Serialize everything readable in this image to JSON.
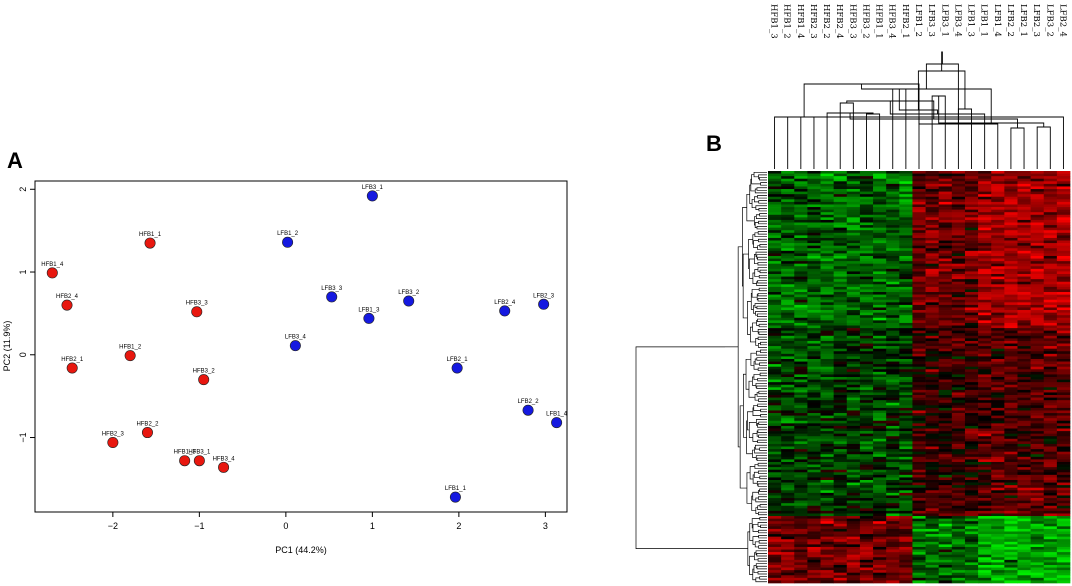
{
  "figure": {
    "panel_a_letter": "A",
    "panel_b_letter": "B"
  },
  "chart_data": [
    {
      "type": "scatter",
      "panel": "A",
      "xlabel": "PC1 (44.2%)",
      "ylabel": "PC2 (11.9%)",
      "xlim": [
        -2.9,
        3.25
      ],
      "ylim": [
        -1.9,
        2.1
      ],
      "xticks": [
        -2,
        -1,
        0,
        1,
        2,
        3
      ],
      "yticks": [
        -1,
        0,
        1,
        2
      ],
      "xtick_labels": [
        "−2",
        "−1",
        "0",
        "1",
        "2",
        "3"
      ],
      "ytick_labels": [
        "−1",
        "0",
        "1",
        "2"
      ],
      "grid": false,
      "colors": {
        "HFB": "#e8170f",
        "LFB": "#1519e0"
      },
      "points": [
        {
          "label": "HFB1_1",
          "x": -1.57,
          "y": 1.35,
          "group": "HFB"
        },
        {
          "label": "HFB1_4",
          "x": -2.7,
          "y": 0.99,
          "group": "HFB"
        },
        {
          "label": "HFB2_4",
          "x": -2.53,
          "y": 0.6,
          "group": "HFB"
        },
        {
          "label": "HFB3_3",
          "x": -1.03,
          "y": 0.52,
          "group": "HFB"
        },
        {
          "label": "HFB2_1",
          "x": -2.47,
          "y": -0.16,
          "group": "HFB"
        },
        {
          "label": "HFB1_2",
          "x": -1.8,
          "y": -0.01,
          "group": "HFB"
        },
        {
          "label": "HFB3_2",
          "x": -0.95,
          "y": -0.3,
          "group": "HFB"
        },
        {
          "label": "HFB2_2",
          "x": -1.6,
          "y": -0.94,
          "group": "HFB"
        },
        {
          "label": "HFB2_3",
          "x": -2.0,
          "y": -1.06,
          "group": "HFB"
        },
        {
          "label": "HFB1_3",
          "x": -1.17,
          "y": -1.28,
          "group": "HFB"
        },
        {
          "label": "HFB3_1",
          "x": -1.0,
          "y": -1.28,
          "group": "HFB"
        },
        {
          "label": "HFB3_4",
          "x": -0.72,
          "y": -1.36,
          "group": "HFB"
        },
        {
          "label": "LFB3_1",
          "x": 1.0,
          "y": 1.92,
          "group": "LFB"
        },
        {
          "label": "LFB1_2",
          "x": 0.02,
          "y": 1.36,
          "group": "LFB"
        },
        {
          "label": "LFB3_3",
          "x": 0.53,
          "y": 0.7,
          "group": "LFB"
        },
        {
          "label": "LFB3_2",
          "x": 1.42,
          "y": 0.65,
          "group": "LFB"
        },
        {
          "label": "LFB1_3",
          "x": 0.96,
          "y": 0.44,
          "group": "LFB"
        },
        {
          "label": "LFB3_4",
          "x": 0.11,
          "y": 0.11,
          "group": "LFB"
        },
        {
          "label": "LFB2_4",
          "x": 2.53,
          "y": 0.53,
          "group": "LFB"
        },
        {
          "label": "LFB2_3",
          "x": 2.98,
          "y": 0.61,
          "group": "LFB"
        },
        {
          "label": "LFB2_1",
          "x": 1.98,
          "y": -0.16,
          "group": "LFB"
        },
        {
          "label": "LFB2_2",
          "x": 2.8,
          "y": -0.67,
          "group": "LFB"
        },
        {
          "label": "LFB1_4",
          "x": 3.13,
          "y": -0.82,
          "group": "LFB"
        },
        {
          "label": "LFB1_1",
          "x": 1.96,
          "y": -1.72,
          "group": "LFB"
        }
      ]
    },
    {
      "type": "heatmap",
      "panel": "B",
      "columns": [
        "HFB1_3",
        "HFB1_2",
        "HFB1_4",
        "HFB2_3",
        "HFB2_2",
        "HFB2_4",
        "HFB3_3",
        "HFB3_2",
        "HFB1_1",
        "HFB3_4",
        "HFB2_1",
        "LFB1_2",
        "LFB3_3",
        "LFB3_1",
        "LFB3_4",
        "LFB1_3",
        "LFB1_1",
        "LFB1_4",
        "LFB2_2",
        "LFB2_1",
        "LFB2_3",
        "LFB3_2",
        "LFB2_4"
      ],
      "row_count": 160,
      "color_scale": {
        "low": "#1fe01f",
        "mid": "#000000",
        "high": "#ff0000"
      },
      "column_dendrogram": "hierarchical clustering of samples; two main clusters (HFB vs LFB)",
      "row_dendrogram": "hierarchical clustering of features"
    }
  ]
}
